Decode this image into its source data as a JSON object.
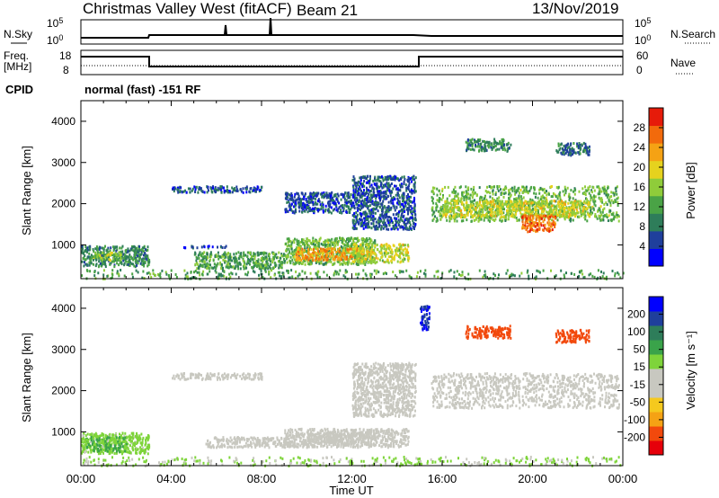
{
  "header": {
    "title": "Christmas Valley West (fitACF)",
    "beam": "Beam 21",
    "date": "13/Nov/2019"
  },
  "top_panels": {
    "nsky": {
      "left_label": "N.Sky",
      "right_label": "N.Search",
      "left_ticks": [
        "10^5",
        "10^0"
      ],
      "right_ticks": [
        "10^5",
        "10^0"
      ]
    },
    "freq": {
      "left_label_1": "Freq.",
      "left_label_2": "[MHz]",
      "right_label": "Nave",
      "left_ticks": [
        "18",
        "8"
      ],
      "right_ticks": [
        "60",
        "0"
      ],
      "freq_steps": [
        {
          "from_hour": 0,
          "to_hour": 3,
          "value": "high"
        },
        {
          "from_hour": 3,
          "to_hour": 15,
          "value": "low"
        },
        {
          "from_hour": 15,
          "to_hour": 24,
          "value": "high"
        }
      ]
    },
    "cpid": {
      "label": "CPID",
      "text": "normal (fast) -151 RF"
    }
  },
  "chart_data": [
    {
      "type": "heatmap",
      "name": "power",
      "ylabel": "Slant Range [km]",
      "yticks": [
        "4000",
        "3000",
        "2000",
        "1000"
      ],
      "ylim": [
        180,
        4500
      ],
      "colorbar": {
        "label": "Power [dB]",
        "ticks": [
          "28",
          "24",
          "20",
          "16",
          "12",
          "8",
          "4"
        ],
        "range": [
          0,
          32
        ],
        "colors": [
          "#0000ff",
          "#1f3f9c",
          "#2e7d5a",
          "#4aa346",
          "#8fcc3a",
          "#e6d21e",
          "#f5a214",
          "#f26a0c",
          "#e61b0a"
        ]
      },
      "regions": [
        {
          "t0": 0.0,
          "t1": 3.0,
          "r0": 500,
          "r1": 1000,
          "db": 10
        },
        {
          "t0": 0.5,
          "t1": 1.8,
          "r0": 650,
          "r1": 850,
          "db": 16
        },
        {
          "t0": 4.5,
          "t1": 6.5,
          "r0": 950,
          "r1": 1000,
          "db": 6
        },
        {
          "t0": 5.0,
          "t1": 9.0,
          "r0": 450,
          "r1": 850,
          "db": 12
        },
        {
          "t0": 9.0,
          "t1": 13.0,
          "r0": 550,
          "r1": 1200,
          "db": 14
        },
        {
          "t0": 9.5,
          "t1": 12.5,
          "r0": 650,
          "r1": 950,
          "db": 24
        },
        {
          "t0": 12.0,
          "t1": 14.5,
          "r0": 600,
          "r1": 1050,
          "db": 18
        },
        {
          "t0": 4.0,
          "t1": 8.0,
          "r0": 2300,
          "r1": 2450,
          "db": 6
        },
        {
          "t0": 9.0,
          "t1": 12.0,
          "r0": 1800,
          "r1": 2300,
          "db": 6
        },
        {
          "t0": 12.0,
          "t1": 14.8,
          "r0": 1400,
          "r1": 2700,
          "db": 6
        },
        {
          "t0": 15.5,
          "t1": 23.8,
          "r0": 1600,
          "r1": 2450,
          "db": 14
        },
        {
          "t0": 16.0,
          "t1": 22.5,
          "r0": 1700,
          "r1": 2100,
          "db": 18
        },
        {
          "t0": 19.5,
          "t1": 21.0,
          "r0": 1350,
          "r1": 1750,
          "db": 26
        },
        {
          "t0": 17.0,
          "t1": 19.0,
          "r0": 3300,
          "r1": 3600,
          "db": 10
        },
        {
          "t0": 21.0,
          "t1": 22.5,
          "r0": 3200,
          "r1": 3500,
          "db": 8
        },
        {
          "t0": 0.0,
          "t1": 24.0,
          "r0": 200,
          "r1": 420,
          "db": 12
        }
      ]
    },
    {
      "type": "heatmap",
      "name": "velocity",
      "ylabel": "Slant Range [km]",
      "yticks": [
        "4000",
        "3000",
        "2000",
        "1000"
      ],
      "ylim": [
        180,
        4500
      ],
      "xlabel": "Time UT",
      "xticks": [
        "00:00",
        "04:00",
        "08:00",
        "12:00",
        "16:00",
        "20:00",
        "00:00"
      ],
      "xlim": [
        0,
        24
      ],
      "colorbar": {
        "label": "Velocity [m s⁻¹]",
        "ticks": [
          "200",
          "100",
          "50",
          "15",
          "-15",
          "-50",
          "-100",
          "-200"
        ],
        "range": [
          -250,
          250
        ],
        "colors": [
          "#e6000a",
          "#f2490c",
          "#f5a214",
          "#f5c91e",
          "#c8c8c0",
          "#c8c8c0",
          "#7ed43a",
          "#3aa34a",
          "#2e7d5a",
          "#1f3f9c",
          "#0000ff"
        ]
      },
      "regions": [
        {
          "t0": 0.0,
          "t1": 3.0,
          "r0": 500,
          "r1": 1000,
          "v": 40
        },
        {
          "t0": 0.2,
          "t1": 2.0,
          "r0": 550,
          "r1": 900,
          "v": 70
        },
        {
          "t0": 5.5,
          "t1": 9.5,
          "r0": 650,
          "r1": 900,
          "v": -30
        },
        {
          "t0": 9.0,
          "t1": 14.5,
          "r0": 650,
          "r1": 1100,
          "v": -40
        },
        {
          "t0": 10.0,
          "t1": 13.0,
          "r0": 700,
          "r1": 1000,
          "v": 0
        },
        {
          "t0": 4.0,
          "t1": 8.0,
          "r0": 2300,
          "r1": 2450,
          "v": 0
        },
        {
          "t0": 12.0,
          "t1": 14.8,
          "r0": 1400,
          "r1": 2700,
          "v": 0
        },
        {
          "t0": 15.5,
          "t1": 23.8,
          "r0": 1600,
          "r1": 2450,
          "v": 0
        },
        {
          "t0": 17.0,
          "t1": 19.0,
          "r0": 3300,
          "r1": 3600,
          "v": -180
        },
        {
          "t0": 21.0,
          "t1": 22.5,
          "r0": 3200,
          "r1": 3500,
          "v": -180
        },
        {
          "t0": 15.0,
          "t1": 15.4,
          "r0": 3500,
          "r1": 4100,
          "v": 200
        },
        {
          "t0": 0.0,
          "t1": 24.0,
          "r0": 200,
          "r1": 420,
          "v": 30
        }
      ]
    }
  ]
}
